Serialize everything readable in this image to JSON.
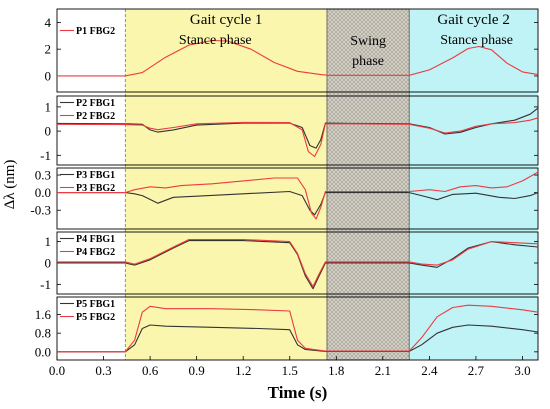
{
  "chart_data": {
    "type": "line",
    "xlabel": "Time (s)",
    "ylabel": "Δλ (nm)",
    "xlim": [
      0,
      3.1
    ],
    "x_ticks": [
      "0.0",
      "0.3",
      "0.6",
      "0.9",
      "1.2",
      "1.5",
      "1.8",
      "2.1",
      "2.4",
      "2.7",
      "3.0"
    ],
    "regions": [
      {
        "name": "gait-cycle-1",
        "type": "stance",
        "x_start": 0.44,
        "x_end": 1.74,
        "color": "#fbf6ad",
        "title": "Gait cycle 1",
        "subtitle": "Stance phase"
      },
      {
        "name": "swing",
        "type": "swing",
        "x_start": 1.74,
        "x_end": 2.27,
        "color": "#cfcdc2",
        "subtitle": "Swing\nphase"
      },
      {
        "name": "gait-cycle-2",
        "type": "stance",
        "x_start": 2.27,
        "x_end": 3.1,
        "color": "#bff3f6",
        "title": "Gait cycle 2",
        "subtitle": "Stance phase"
      }
    ],
    "series_colors": {
      "FBG1": "#333333",
      "FBG2": "#ec3b42"
    },
    "panels": [
      {
        "name": "P1",
        "ylim": [
          -1.2,
          5.0
        ],
        "yticks": [
          "0",
          "2",
          "4"
        ],
        "ytick_values": [
          0,
          2,
          4
        ],
        "legend": [
          "P1 FBG2"
        ],
        "series": [
          {
            "name": "P1 FBG2",
            "color": "#ec3b42",
            "points": [
              [
                0,
                0
              ],
              [
                0.44,
                0
              ],
              [
                0.55,
                0.25
              ],
              [
                0.7,
                1.4
              ],
              [
                0.85,
                2.3
              ],
              [
                1.0,
                2.65
              ],
              [
                1.1,
                2.6
              ],
              [
                1.25,
                2.0
              ],
              [
                1.4,
                1.0
              ],
              [
                1.55,
                0.35
              ],
              [
                1.7,
                0.1
              ],
              [
                1.75,
                0.05
              ],
              [
                2.0,
                0.05
              ],
              [
                2.27,
                0.05
              ],
              [
                2.4,
                0.45
              ],
              [
                2.55,
                1.35
              ],
              [
                2.65,
                2.05
              ],
              [
                2.72,
                2.2
              ],
              [
                2.8,
                1.95
              ],
              [
                2.9,
                0.95
              ],
              [
                3.0,
                0.3
              ],
              [
                3.1,
                0.1
              ]
            ]
          }
        ]
      },
      {
        "name": "P2",
        "ylim": [
          -1.4,
          1.45
        ],
        "yticks": [
          "1",
          "0",
          "-1"
        ],
        "ytick_values": [
          1,
          0,
          -1
        ],
        "legend": [
          "P2 FBG1",
          "P2 FBG2"
        ],
        "series": [
          {
            "name": "P2 FBG1",
            "color": "#333333",
            "points": [
              [
                0,
                0.32
              ],
              [
                0.44,
                0.3
              ],
              [
                0.55,
                0.28
              ],
              [
                0.6,
                0.05
              ],
              [
                0.65,
                -0.04
              ],
              [
                0.75,
                0.05
              ],
              [
                0.9,
                0.25
              ],
              [
                1.2,
                0.33
              ],
              [
                1.5,
                0.33
              ],
              [
                1.58,
                0.15
              ],
              [
                1.63,
                -0.6
              ],
              [
                1.67,
                -0.7
              ],
              [
                1.7,
                -0.35
              ],
              [
                1.73,
                0.33
              ],
              [
                1.9,
                0.32
              ],
              [
                2.27,
                0.3
              ],
              [
                2.4,
                0.15
              ],
              [
                2.5,
                -0.12
              ],
              [
                2.6,
                -0.05
              ],
              [
                2.7,
                0.15
              ],
              [
                2.8,
                0.3
              ],
              [
                2.95,
                0.45
              ],
              [
                3.05,
                0.7
              ],
              [
                3.1,
                0.95
              ]
            ]
          },
          {
            "name": "P2 FBG2",
            "color": "#ec3b42",
            "points": [
              [
                0,
                0.28
              ],
              [
                0.44,
                0.27
              ],
              [
                0.55,
                0.25
              ],
              [
                0.6,
                0.12
              ],
              [
                0.65,
                0.06
              ],
              [
                0.75,
                0.15
              ],
              [
                0.9,
                0.3
              ],
              [
                1.2,
                0.36
              ],
              [
                1.5,
                0.35
              ],
              [
                1.58,
                0.05
              ],
              [
                1.62,
                -0.85
              ],
              [
                1.66,
                -1.05
              ],
              [
                1.7,
                -0.55
              ],
              [
                1.73,
                0.3
              ],
              [
                1.9,
                0.3
              ],
              [
                2.27,
                0.28
              ],
              [
                2.4,
                0.12
              ],
              [
                2.5,
                -0.08
              ],
              [
                2.6,
                0.0
              ],
              [
                2.7,
                0.2
              ],
              [
                2.8,
                0.3
              ],
              [
                2.95,
                0.35
              ],
              [
                3.05,
                0.45
              ],
              [
                3.1,
                0.55
              ]
            ]
          }
        ]
      },
      {
        "name": "P3",
        "ylim": [
          -0.62,
          0.42
        ],
        "yticks": [
          "0.3",
          "0.0",
          "-0.3"
        ],
        "ytick_values": [
          0.3,
          0.0,
          -0.3
        ],
        "legend": [
          "P3 FBG1",
          "P3 FBG2"
        ],
        "series": [
          {
            "name": "P3 FBG1",
            "color": "#333333",
            "points": [
              [
                0,
                0.0
              ],
              [
                0.44,
                0.0
              ],
              [
                0.5,
                -0.02
              ],
              [
                0.55,
                -0.05
              ],
              [
                0.65,
                -0.18
              ],
              [
                0.75,
                -0.08
              ],
              [
                0.9,
                -0.06
              ],
              [
                1.2,
                -0.02
              ],
              [
                1.5,
                0.02
              ],
              [
                1.58,
                -0.05
              ],
              [
                1.63,
                -0.3
              ],
              [
                1.66,
                -0.38
              ],
              [
                1.7,
                -0.2
              ],
              [
                1.73,
                0.0
              ],
              [
                2.27,
                0.0
              ],
              [
                2.35,
                -0.05
              ],
              [
                2.45,
                -0.12
              ],
              [
                2.55,
                -0.03
              ],
              [
                2.7,
                -0.01
              ],
              [
                2.85,
                -0.08
              ],
              [
                2.95,
                -0.1
              ],
              [
                3.05,
                -0.05
              ],
              [
                3.1,
                0.0
              ]
            ]
          },
          {
            "name": "P3 FBG2",
            "color": "#ec3b42",
            "points": [
              [
                0,
                0.0
              ],
              [
                0.44,
                0.0
              ],
              [
                0.5,
                0.05
              ],
              [
                0.6,
                0.1
              ],
              [
                0.7,
                0.08
              ],
              [
                0.8,
                0.12
              ],
              [
                1.0,
                0.15
              ],
              [
                1.2,
                0.2
              ],
              [
                1.4,
                0.25
              ],
              [
                1.55,
                0.25
              ],
              [
                1.6,
                0.05
              ],
              [
                1.64,
                -0.35
              ],
              [
                1.67,
                -0.45
              ],
              [
                1.7,
                -0.25
              ],
              [
                1.73,
                0.02
              ],
              [
                2.27,
                0.02
              ],
              [
                2.4,
                0.05
              ],
              [
                2.5,
                0.02
              ],
              [
                2.6,
                0.1
              ],
              [
                2.7,
                0.12
              ],
              [
                2.8,
                0.08
              ],
              [
                2.9,
                0.1
              ],
              [
                3.0,
                0.2
              ],
              [
                3.1,
                0.35
              ]
            ]
          }
        ]
      },
      {
        "name": "P4",
        "ylim": [
          -1.45,
          1.45
        ],
        "yticks": [
          "1",
          "0",
          "-1"
        ],
        "ytick_values": [
          1,
          0,
          -1
        ],
        "legend": [
          "P4 FBG1",
          "P4 FBG2"
        ],
        "series": [
          {
            "name": "P4 FBG1",
            "color": "#333333",
            "points": [
              [
                0,
                0.0
              ],
              [
                0.44,
                0.0
              ],
              [
                0.5,
                -0.1
              ],
              [
                0.6,
                0.15
              ],
              [
                0.75,
                0.7
              ],
              [
                0.85,
                1.05
              ],
              [
                1.2,
                1.05
              ],
              [
                1.5,
                0.95
              ],
              [
                1.55,
                0.4
              ],
              [
                1.6,
                -0.6
              ],
              [
                1.65,
                -1.2
              ],
              [
                1.69,
                -0.6
              ],
              [
                1.73,
                0.0
              ],
              [
                2.27,
                0.0
              ],
              [
                2.35,
                -0.1
              ],
              [
                2.45,
                -0.2
              ],
              [
                2.55,
                0.2
              ],
              [
                2.65,
                0.7
              ],
              [
                2.8,
                1.0
              ],
              [
                2.95,
                0.85
              ],
              [
                3.1,
                0.75
              ]
            ]
          },
          {
            "name": "P4 FBG2",
            "color": "#ec3b42",
            "points": [
              [
                0,
                0.05
              ],
              [
                0.44,
                0.05
              ],
              [
                0.5,
                -0.05
              ],
              [
                0.6,
                0.2
              ],
              [
                0.75,
                0.75
              ],
              [
                0.85,
                1.1
              ],
              [
                1.2,
                1.1
              ],
              [
                1.5,
                1.0
              ],
              [
                1.55,
                0.45
              ],
              [
                1.6,
                -0.5
              ],
              [
                1.65,
                -1.1
              ],
              [
                1.69,
                -0.5
              ],
              [
                1.73,
                0.05
              ],
              [
                2.27,
                0.05
              ],
              [
                2.35,
                -0.05
              ],
              [
                2.45,
                -0.1
              ],
              [
                2.55,
                0.15
              ],
              [
                2.65,
                0.65
              ],
              [
                2.8,
                1.0
              ],
              [
                2.95,
                0.95
              ],
              [
                3.1,
                0.9
              ]
            ]
          }
        ]
      },
      {
        "name": "P5",
        "ylim": [
          -0.35,
          2.35
        ],
        "yticks": [
          "1.6",
          "0.8",
          "0.0"
        ],
        "ytick_values": [
          1.6,
          0.8,
          0.0
        ],
        "legend": [
          "P5 FBG1",
          "P5 FBG2"
        ],
        "series": [
          {
            "name": "P5 FBG1",
            "color": "#333333",
            "points": [
              [
                0,
                0.0
              ],
              [
                0.44,
                0.0
              ],
              [
                0.5,
                0.3
              ],
              [
                0.55,
                1.0
              ],
              [
                0.6,
                1.15
              ],
              [
                0.7,
                1.1
              ],
              [
                1.0,
                1.05
              ],
              [
                1.3,
                1.0
              ],
              [
                1.5,
                0.95
              ],
              [
                1.55,
                0.3
              ],
              [
                1.6,
                0.1
              ],
              [
                1.73,
                0.02
              ],
              [
                2.27,
                0.02
              ],
              [
                2.35,
                0.3
              ],
              [
                2.45,
                0.8
              ],
              [
                2.55,
                1.05
              ],
              [
                2.65,
                1.15
              ],
              [
                2.8,
                1.1
              ],
              [
                3.0,
                0.95
              ],
              [
                3.1,
                0.85
              ]
            ]
          },
          {
            "name": "P5 FBG2",
            "color": "#ec3b42",
            "points": [
              [
                0,
                0.0
              ],
              [
                0.44,
                0.0
              ],
              [
                0.5,
                0.5
              ],
              [
                0.55,
                1.7
              ],
              [
                0.6,
                1.95
              ],
              [
                0.7,
                1.85
              ],
              [
                1.0,
                1.85
              ],
              [
                1.3,
                1.8
              ],
              [
                1.5,
                1.75
              ],
              [
                1.55,
                0.5
              ],
              [
                1.6,
                0.15
              ],
              [
                1.73,
                0.03
              ],
              [
                2.27,
                0.03
              ],
              [
                2.35,
                0.6
              ],
              [
                2.45,
                1.5
              ],
              [
                2.55,
                1.9
              ],
              [
                2.65,
                2.0
              ],
              [
                2.8,
                1.95
              ],
              [
                3.0,
                1.8
              ],
              [
                3.1,
                1.7
              ]
            ]
          }
        ]
      }
    ]
  }
}
